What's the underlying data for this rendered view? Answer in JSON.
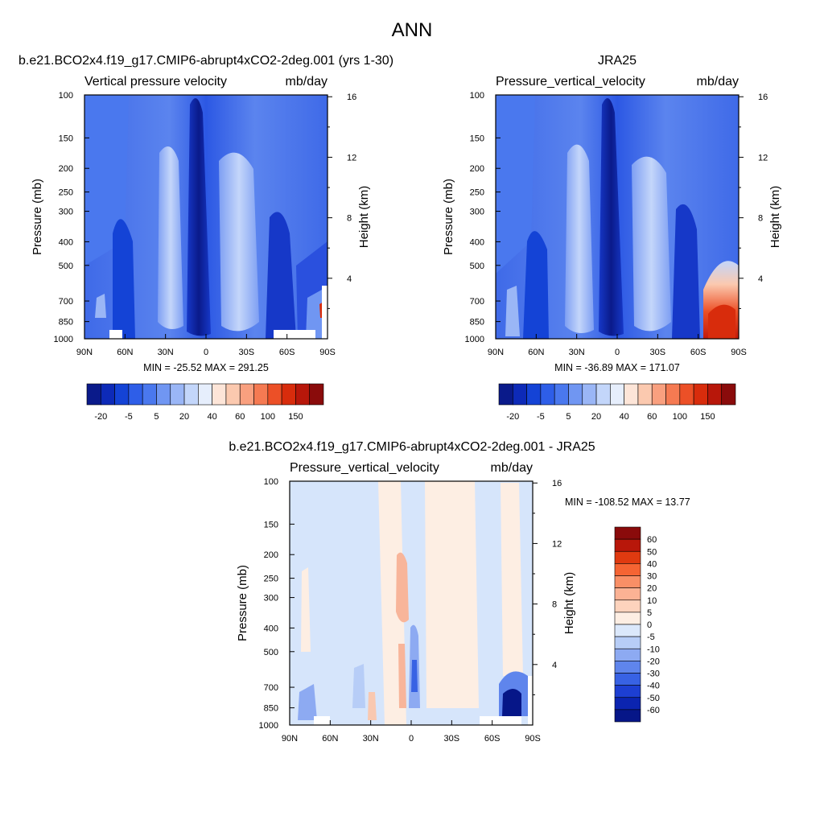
{
  "figure": {
    "title": "ANN",
    "left_title": "b.e21.BCO2x4.f19_g17.CMIP6-abrupt4xCO2-2deg.001 (yrs 1-30)",
    "right_title": "JRA25",
    "diff_title": "b.e21.BCO2x4.f19_g17.CMIP6-abrupt4xCO2-2deg.001 - JRA25"
  },
  "chart_data": [
    {
      "type": "heatmap",
      "name": "model",
      "var_label": "Vertical pressure velocity",
      "units": "mb/day",
      "ylabel": "Pressure (mb)",
      "ylabel_right": "Height (km)",
      "y_ticks": [
        "100",
        "150",
        "200",
        "250",
        "300",
        "400",
        "500",
        "700",
        "850",
        "1000"
      ],
      "x_ticks": [
        "90N",
        "60N",
        "30N",
        "0",
        "30S",
        "60S",
        "90S"
      ],
      "right_ticks": [
        "16",
        "12",
        "8",
        "4"
      ],
      "stats": "MIN = -25.52  MAX = 291.25",
      "colorbar_labels": [
        "-20",
        "-5",
        "5",
        "20",
        "40",
        "60",
        "100",
        "150"
      ],
      "colors": [
        "#0a1a8a",
        "#0d2ab8",
        "#1443d6",
        "#2e5ee8",
        "#4a78ee",
        "#7096f2",
        "#9ab6f6",
        "#c3d6fa",
        "#e6eefc",
        "#fde5d8",
        "#fbc9af",
        "#f9a07f",
        "#f57a52",
        "#ec5027",
        "#d82c0c",
        "#b8170a",
        "#8a0b0b"
      ]
    },
    {
      "type": "heatmap",
      "name": "obs",
      "var_label": "Pressure_vertical_velocity",
      "units": "mb/day",
      "ylabel": "Pressure (mb)",
      "ylabel_right": "Height (km)",
      "y_ticks": [
        "100",
        "150",
        "200",
        "250",
        "300",
        "400",
        "500",
        "700",
        "850",
        "1000"
      ],
      "x_ticks": [
        "90N",
        "60N",
        "30N",
        "0",
        "30S",
        "60S",
        "90S"
      ],
      "right_ticks": [
        "16",
        "12",
        "8",
        "4"
      ],
      "stats": "MIN = -36.89  MAX = 171.07",
      "colorbar_labels": [
        "-20",
        "-5",
        "5",
        "20",
        "40",
        "60",
        "100",
        "150"
      ]
    },
    {
      "type": "heatmap",
      "name": "difference",
      "var_label": "Pressure_vertical_velocity",
      "units": "mb/day",
      "ylabel": "Pressure (mb)",
      "ylabel_right": "Height (km)",
      "y_ticks": [
        "100",
        "150",
        "200",
        "250",
        "300",
        "400",
        "500",
        "700",
        "850",
        "1000"
      ],
      "x_ticks": [
        "90N",
        "60N",
        "30N",
        "0",
        "30S",
        "60S",
        "90S"
      ],
      "right_ticks": [
        "16",
        "12",
        "8",
        "4"
      ],
      "stats": "MIN = -108.52  MAX =  13.77",
      "colorbar_labels": [
        "60",
        "50",
        "40",
        "30",
        "20",
        "10",
        "5",
        "0",
        "-5",
        "-10",
        "-20",
        "-30",
        "-40",
        "-50",
        "-60"
      ],
      "colors": [
        "#8a0b0b",
        "#b8170a",
        "#e03a10",
        "#f56433",
        "#f98f66",
        "#fbb294",
        "#fdd3bd",
        "#fdeee3",
        "#dbe8fb",
        "#b7cdf7",
        "#8daaf2",
        "#5f85ec",
        "#3862e4",
        "#1d3fd2",
        "#0b24b0",
        "#061688"
      ]
    }
  ]
}
